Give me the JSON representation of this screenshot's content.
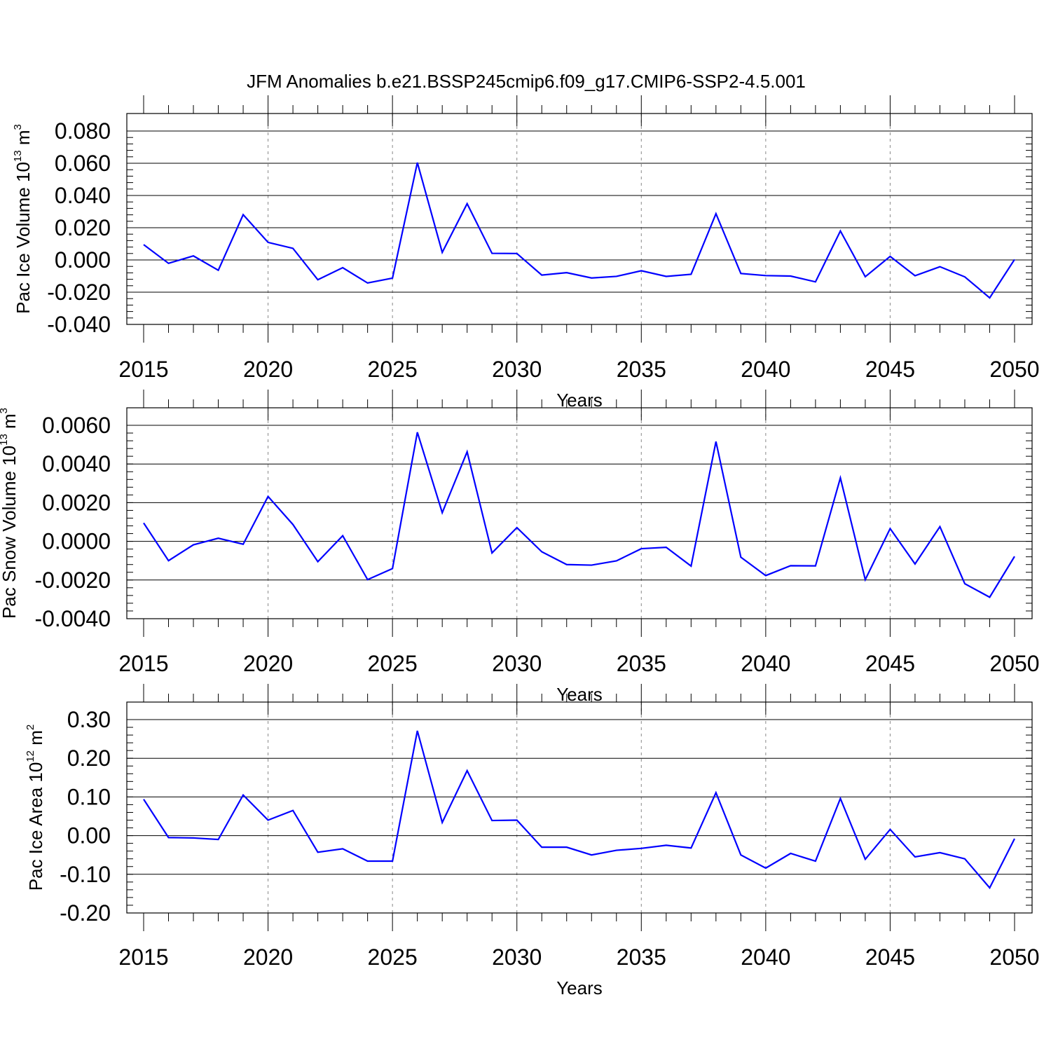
{
  "title": "JFM Anomalies b.e21.BSSP245cmip6.f09_g17.CMIP6-SSP2-4.5.001",
  "line_color": "#0000ff",
  "chart_data": [
    {
      "type": "line",
      "series": [
        {
          "values": [
            0.0095,
            -0.0021,
            0.0025,
            -0.0064,
            0.0281,
            0.0109,
            0.0072,
            -0.0123,
            -0.0048,
            -0.0143,
            -0.0113,
            0.0604,
            0.0047,
            0.0349,
            0.0041,
            0.004,
            -0.0094,
            -0.0079,
            -0.0112,
            -0.0102,
            -0.0067,
            -0.0102,
            -0.0089,
            0.0287,
            -0.0084,
            -0.0097,
            -0.01,
            -0.0136,
            0.018,
            -0.0104,
            0.0022,
            -0.0098,
            -0.0042,
            -0.0105,
            -0.0235,
            0.0003
          ]
        }
      ],
      "ylim": [
        -0.04,
        0.08
      ],
      "yticks": [
        "0.080",
        "0.060",
        "0.040",
        "0.020",
        "0.000",
        "-0.020",
        "-0.040"
      ],
      "ylabel": {
        "main": "Pac Ice Volume 10",
        "exp": "13",
        "unit": " m",
        "unit_exp": "3"
      },
      "xlabel": "Years"
    },
    {
      "type": "line",
      "series": [
        {
          "values": [
            0.00095,
            -0.001,
            -0.00018,
            0.00016,
            -0.00015,
            0.00232,
            0.00087,
            -0.00105,
            0.00029,
            -0.00198,
            -0.00141,
            0.00564,
            0.00148,
            0.00463,
            -0.0006,
            0.00071,
            -0.00054,
            -0.0012,
            -0.00123,
            -0.00101,
            -0.00038,
            -0.00031,
            -0.00128,
            0.00516,
            -0.00082,
            -0.00177,
            -0.00126,
            -0.00127,
            0.00328,
            -0.00198,
            0.00066,
            -0.00117,
            0.00076,
            -0.00219,
            -0.00289,
            -0.00078
          ]
        }
      ],
      "ylim": [
        -0.004,
        0.006
      ],
      "yticks": [
        "0.0060",
        "0.0040",
        "0.0020",
        "0.0000",
        "-0.0020",
        "-0.0040"
      ],
      "ylabel": {
        "main": "Pac Snow Volume 10",
        "exp": "13",
        "unit": " m",
        "unit_exp": "3"
      },
      "xlabel": "Years"
    },
    {
      "type": "line",
      "series": [
        {
          "values": [
            0.094,
            -0.005,
            -0.006,
            -0.01,
            0.105,
            0.04,
            0.065,
            -0.043,
            -0.034,
            -0.066,
            -0.066,
            0.271,
            0.034,
            0.168,
            0.039,
            0.04,
            -0.03,
            -0.03,
            -0.05,
            -0.038,
            -0.033,
            -0.025,
            -0.032,
            0.111,
            -0.05,
            -0.084,
            -0.046,
            -0.066,
            0.096,
            -0.061,
            0.016,
            -0.055,
            -0.044,
            -0.06,
            -0.135,
            -0.008
          ]
        }
      ],
      "ylim": [
        -0.2,
        0.3
      ],
      "yticks": [
        "0.30",
        "0.20",
        "0.10",
        "0.00",
        "-0.10",
        "-0.20"
      ],
      "ylabel": {
        "main": "Pac Ice Area 10",
        "exp": "12",
        "unit": " m",
        "unit_exp": "2"
      },
      "xlabel": "Years"
    }
  ],
  "x": [
    2015,
    2016,
    2017,
    2018,
    2019,
    2020,
    2021,
    2022,
    2023,
    2024,
    2025,
    2026,
    2027,
    2028,
    2029,
    2030,
    2031,
    2032,
    2033,
    2034,
    2035,
    2036,
    2037,
    2038,
    2039,
    2040,
    2041,
    2042,
    2043,
    2044,
    2045,
    2046,
    2047,
    2048,
    2049,
    2050
  ],
  "xticks": [
    "2015",
    "2020",
    "2025",
    "2030",
    "2035",
    "2040",
    "2045",
    "2050"
  ],
  "xlim": [
    2015,
    2050
  ]
}
